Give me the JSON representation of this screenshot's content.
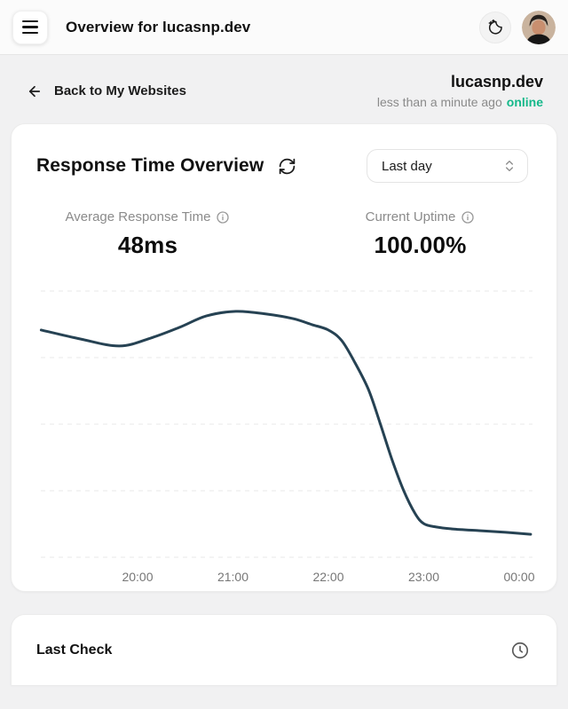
{
  "header": {
    "title": "Overview for lucasnp.dev",
    "menu_icon": "hamburger-icon",
    "theme_toggle_icon": "moon-stars-icon",
    "avatar_icon": "user-avatar"
  },
  "subheader": {
    "back_link": "Back to My Websites",
    "back_icon": "arrow-left-icon",
    "site_name": "lucasnp.dev",
    "last_checked": "less than a minute ago",
    "status": "online",
    "status_color": "#14b88a"
  },
  "overview_card": {
    "title": "Response Time Overview",
    "refresh_icon": "refresh-icon",
    "range_select": {
      "value": "Last day",
      "chevron_icon": "chevrons-up-down-icon"
    },
    "stats": [
      {
        "label": "Average Response Time",
        "info_icon": "info-icon",
        "value": "48ms"
      },
      {
        "label": "Current Uptime",
        "info_icon": "info-icon",
        "value": "100.00%"
      }
    ]
  },
  "chart_data": {
    "type": "line",
    "title": "Response time over the last day",
    "xlabel": "",
    "ylabel": "",
    "x_tick_labels": [
      "20:00",
      "21:00",
      "22:00",
      "23:00",
      "00:00"
    ],
    "x_tick_hours": [
      20,
      21,
      22,
      23,
      24
    ],
    "y_gridlines_ms": [
      0,
      20,
      40,
      60,
      80
    ],
    "ylim": [
      0,
      80
    ],
    "grid": "dashed-horizontal",
    "legend": "none",
    "line_color": "#264253",
    "points": [
      {
        "hour": 18.99,
        "ms": 68.3
      },
      {
        "hour": 19.4,
        "ms": 65.6
      },
      {
        "hour": 19.81,
        "ms": 63.5
      },
      {
        "hour": 20.14,
        "ms": 65.9
      },
      {
        "hour": 20.44,
        "ms": 69.1
      },
      {
        "hour": 20.72,
        "ms": 72.5
      },
      {
        "hour": 21.03,
        "ms": 73.9
      },
      {
        "hour": 21.35,
        "ms": 73.1
      },
      {
        "hour": 21.63,
        "ms": 71.7
      },
      {
        "hour": 21.83,
        "ms": 69.9
      },
      {
        "hour": 22.0,
        "ms": 68.3
      },
      {
        "hour": 22.14,
        "ms": 65.1
      },
      {
        "hour": 22.28,
        "ms": 58.4
      },
      {
        "hour": 22.42,
        "ms": 50.4
      },
      {
        "hour": 22.54,
        "ms": 40.5
      },
      {
        "hour": 22.67,
        "ms": 29.1
      },
      {
        "hour": 22.79,
        "ms": 20.0
      },
      {
        "hour": 22.91,
        "ms": 13.1
      },
      {
        "hour": 23.0,
        "ms": 10.1
      },
      {
        "hour": 23.13,
        "ms": 9.1
      },
      {
        "hour": 23.3,
        "ms": 8.5
      },
      {
        "hour": 23.58,
        "ms": 8.0
      },
      {
        "hour": 23.86,
        "ms": 7.5
      },
      {
        "hour": 24.12,
        "ms": 6.9
      }
    ]
  },
  "last_check_card": {
    "title": "Last Check",
    "icon": "clock-icon"
  }
}
